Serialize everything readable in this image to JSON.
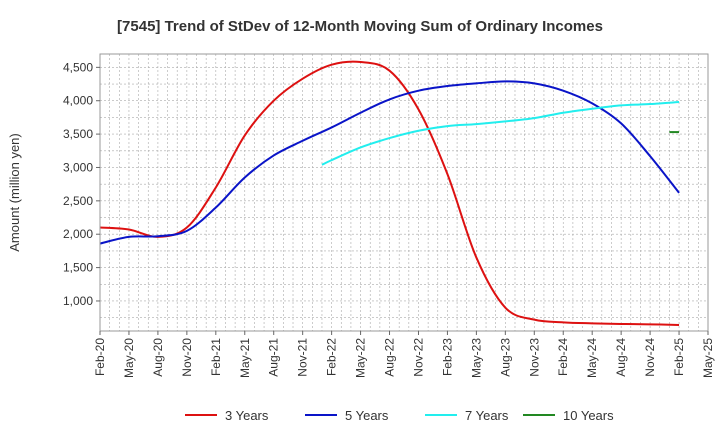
{
  "chart_data": {
    "type": "line",
    "title": "[7545]  Trend of StDev of 12-Month Moving Sum of Ordinary Incomes",
    "xlabel": "",
    "ylabel": "Amount (million yen)",
    "x_tick_labels": [
      "Feb-20",
      "May-20",
      "Aug-20",
      "Nov-20",
      "Feb-21",
      "May-21",
      "Aug-21",
      "Nov-21",
      "Feb-22",
      "May-22",
      "Aug-22",
      "Nov-22",
      "Feb-23",
      "May-23",
      "Aug-23",
      "Nov-23",
      "Feb-24",
      "May-24",
      "Aug-24",
      "Nov-24",
      "Feb-25",
      "May-25"
    ],
    "x_range": [
      "Feb-20",
      "May-25"
    ],
    "yticks": [
      1000,
      1500,
      2000,
      2500,
      3000,
      3500,
      4000,
      4500
    ],
    "ytick_labels": [
      "1,000",
      "1,500",
      "2,000",
      "2,500",
      "3,000",
      "3,500",
      "4,000",
      "4,500"
    ],
    "ylim": [
      550,
      4700
    ],
    "grid": true,
    "legend_position": "bottom",
    "series": [
      {
        "name": "3 Years",
        "color": "#dd1111",
        "points": [
          [
            "Feb-20",
            2100
          ],
          [
            "May-20",
            2070
          ],
          [
            "Aug-20",
            1960
          ],
          [
            "Nov-20",
            2100
          ],
          [
            "Feb-21",
            2700
          ],
          [
            "May-21",
            3480
          ],
          [
            "Aug-21",
            4000
          ],
          [
            "Nov-21",
            4330
          ],
          [
            "Feb-22",
            4540
          ],
          [
            "May-22",
            4580
          ],
          [
            "Aug-22",
            4450
          ],
          [
            "Nov-22",
            3870
          ],
          [
            "Feb-23",
            2900
          ],
          [
            "May-23",
            1650
          ],
          [
            "Aug-23",
            900
          ],
          [
            "Nov-23",
            720
          ],
          [
            "Feb-24",
            680
          ],
          [
            "May-24",
            665
          ],
          [
            "Aug-24",
            655
          ],
          [
            "Nov-24",
            650
          ],
          [
            "Feb-25",
            640
          ]
        ]
      },
      {
        "name": "5 Years",
        "color": "#0a14c8",
        "points": [
          [
            "Feb-20",
            1860
          ],
          [
            "May-20",
            1960
          ],
          [
            "Aug-20",
            1970
          ],
          [
            "Nov-20",
            2050
          ],
          [
            "Feb-21",
            2400
          ],
          [
            "May-21",
            2850
          ],
          [
            "Aug-21",
            3180
          ],
          [
            "Nov-21",
            3400
          ],
          [
            "Feb-22",
            3600
          ],
          [
            "May-22",
            3820
          ],
          [
            "Aug-22",
            4020
          ],
          [
            "Nov-22",
            4150
          ],
          [
            "Feb-23",
            4220
          ],
          [
            "May-23",
            4260
          ],
          [
            "Aug-23",
            4290
          ],
          [
            "Nov-23",
            4260
          ],
          [
            "Feb-24",
            4150
          ],
          [
            "May-24",
            3960
          ],
          [
            "Aug-24",
            3660
          ],
          [
            "Nov-24",
            3170
          ],
          [
            "Feb-25",
            2620
          ]
        ]
      },
      {
        "name": "7 Years",
        "color": "#22eeee",
        "points": [
          [
            "Jan-22",
            3040
          ],
          [
            "Feb-22",
            3110
          ],
          [
            "May-22",
            3300
          ],
          [
            "Aug-22",
            3440
          ],
          [
            "Nov-22",
            3550
          ],
          [
            "Feb-23",
            3620
          ],
          [
            "May-23",
            3650
          ],
          [
            "Aug-23",
            3690
          ],
          [
            "Nov-23",
            3740
          ],
          [
            "Feb-24",
            3820
          ],
          [
            "May-24",
            3880
          ],
          [
            "Aug-24",
            3930
          ],
          [
            "Nov-24",
            3950
          ],
          [
            "Feb-25",
            3980
          ]
        ]
      },
      {
        "name": "10 Years",
        "color": "#228822",
        "points": [
          [
            "Jan-25",
            3530
          ],
          [
            "Feb-25",
            3530
          ]
        ]
      }
    ]
  }
}
